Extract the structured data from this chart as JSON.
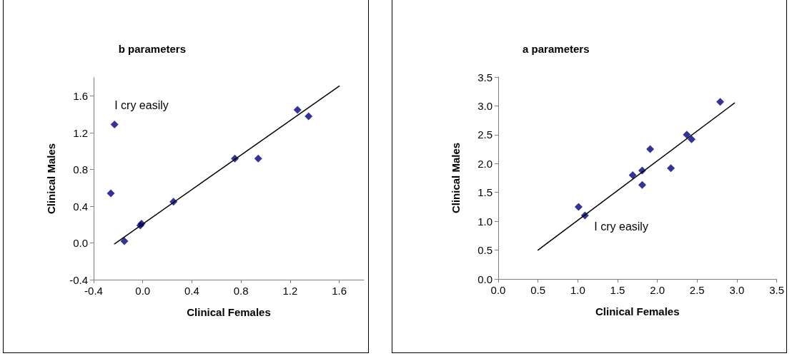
{
  "chart_data": [
    {
      "type": "scatter",
      "title": "b parameters",
      "xlabel": "Clinical Females",
      "ylabel": "Clinical Males",
      "grid": false,
      "xlim": [
        -0.4,
        1.8
      ],
      "ylim": [
        -0.4,
        1.8
      ],
      "xticks": [
        {
          "value": -0.4,
          "label": "-0.4"
        },
        {
          "value": 0,
          "label": "0.0"
        },
        {
          "value": 0.4,
          "label": "0.4"
        },
        {
          "value": 0.8,
          "label": "0.8"
        },
        {
          "value": 1.2,
          "label": "1.2"
        },
        {
          "value": 1.6,
          "label": "1.6"
        }
      ],
      "yticks": [
        {
          "value": -0.4,
          "label": "-0.4"
        },
        {
          "value": 0,
          "label": "0.0"
        },
        {
          "value": 0.4,
          "label": "0.4"
        },
        {
          "value": 0.8,
          "label": "0.8"
        },
        {
          "value": 1.2,
          "label": "1.2"
        },
        {
          "value": 1.6,
          "label": "1.6"
        }
      ],
      "annotations": [
        {
          "text": "I cry easily",
          "x": -0.23,
          "y": 1.29
        }
      ],
      "series": [
        {
          "marker": "diamond",
          "color": "#000080",
          "x": [
            -0.26,
            -0.23,
            -0.15,
            -0.02,
            -0.01,
            0.25,
            0.75,
            0.94,
            1.26,
            1.35
          ],
          "values": [
            0.54,
            1.29,
            0.02,
            0.19,
            0.21,
            0.45,
            0.92,
            0.92,
            1.45,
            1.38
          ]
        },
        {
          "type": "line",
          "marker": "none",
          "color": "#000000",
          "x": [
            -0.23,
            1.6
          ],
          "values": [
            -0.01,
            1.71
          ]
        }
      ]
    },
    {
      "type": "scatter",
      "title": "a parameters",
      "xlabel": "Clinical Females",
      "ylabel": "Clinical Males",
      "grid": false,
      "xlim": [
        0,
        3.5
      ],
      "ylim": [
        0,
        3.5
      ],
      "xticks": [
        {
          "value": 0,
          "label": "0.0"
        },
        {
          "value": 0.5,
          "label": "0.5"
        },
        {
          "value": 1,
          "label": "1.0"
        },
        {
          "value": 1.5,
          "label": "1.5"
        },
        {
          "value": 2,
          "label": "2.0"
        },
        {
          "value": 2.5,
          "label": "2.5"
        },
        {
          "value": 3,
          "label": "3.0"
        },
        {
          "value": 3.5,
          "label": "3.5"
        }
      ],
      "yticks": [
        {
          "value": 0,
          "label": "0.0"
        },
        {
          "value": 0.5,
          "label": "0.5"
        },
        {
          "value": 1,
          "label": "1.0"
        },
        {
          "value": 1.5,
          "label": "1.5"
        },
        {
          "value": 2,
          "label": "2.0"
        },
        {
          "value": 2.5,
          "label": "2.5"
        },
        {
          "value": 3,
          "label": "3.0"
        },
        {
          "value": 3.5,
          "label": "3.5"
        }
      ],
      "annotations": [
        {
          "text": "I cry easily",
          "x": 1.09,
          "y": 1.1
        }
      ],
      "series": [
        {
          "marker": "diamond",
          "color": "#000080",
          "x": [
            1.01,
            1.09,
            1.69,
            1.81,
            1.81,
            1.91,
            2.17,
            2.37,
            2.43,
            2.79
          ],
          "values": [
            1.25,
            1.1,
            1.8,
            1.88,
            1.63,
            2.25,
            1.92,
            2.5,
            2.42,
            3.07
          ]
        },
        {
          "type": "line",
          "marker": "none",
          "color": "#000000",
          "x": [
            0.5,
            2.97
          ],
          "values": [
            0.5,
            3.05
          ]
        }
      ]
    }
  ]
}
